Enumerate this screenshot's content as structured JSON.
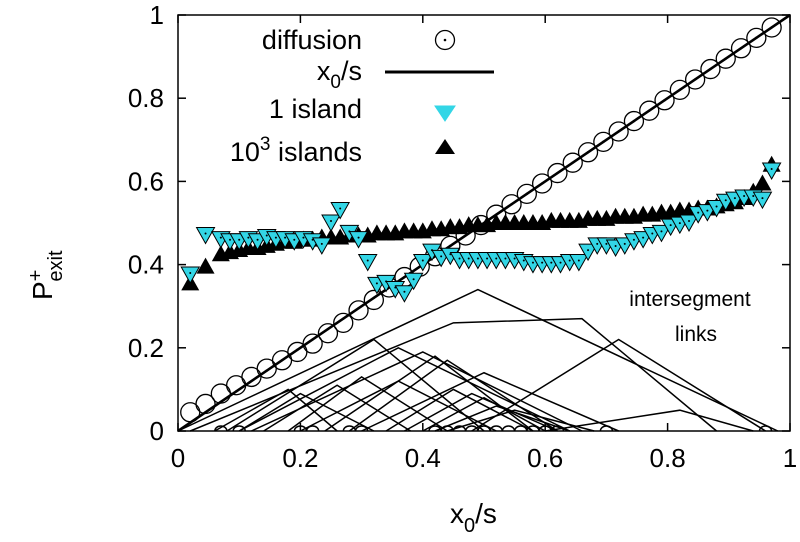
{
  "chart_data": {
    "type": "scatter",
    "xlabel": "x0/s",
    "xlabel_main": "x",
    "xlabel_sub": "0",
    "xlabel_tail": "/s",
    "ylabel": "P+exit",
    "ylabel_main": "P",
    "ylabel_sup": "+",
    "ylabel_sub": "exit",
    "xlim": [
      0,
      1
    ],
    "ylim": [
      0,
      1
    ],
    "x_ticks": [
      "0",
      "0.2",
      "0.4",
      "0.6",
      "0.8",
      "1"
    ],
    "y_ticks": [
      "0",
      "0.2",
      "0.4",
      "0.6",
      "0.8",
      "1"
    ],
    "x_tick_values": [
      0,
      0.2,
      0.4,
      0.6,
      0.8,
      1
    ],
    "y_tick_values": [
      0,
      0.2,
      0.4,
      0.6,
      0.8,
      1
    ],
    "grid": false,
    "legend_position": "top-left",
    "annotation": {
      "line1": "intersegment",
      "line2": "links"
    },
    "series": [
      {
        "name": "diffusion",
        "label": "diffusion",
        "marker": "open-circle",
        "color": "#000000",
        "x": [
          0.02,
          0.045,
          0.07,
          0.095,
          0.12,
          0.145,
          0.17,
          0.195,
          0.22,
          0.245,
          0.27,
          0.295,
          0.32,
          0.345,
          0.37,
          0.395,
          0.42,
          0.445,
          0.47,
          0.495,
          0.52,
          0.545,
          0.57,
          0.595,
          0.62,
          0.645,
          0.67,
          0.695,
          0.72,
          0.745,
          0.77,
          0.795,
          0.82,
          0.845,
          0.87,
          0.895,
          0.92,
          0.945,
          0.97
        ],
        "y": [
          0.045,
          0.065,
          0.09,
          0.11,
          0.13,
          0.15,
          0.17,
          0.19,
          0.21,
          0.235,
          0.26,
          0.29,
          0.315,
          0.345,
          0.37,
          0.395,
          0.42,
          0.445,
          0.47,
          0.495,
          0.52,
          0.545,
          0.57,
          0.595,
          0.62,
          0.645,
          0.67,
          0.695,
          0.72,
          0.745,
          0.77,
          0.795,
          0.82,
          0.845,
          0.87,
          0.895,
          0.92,
          0.945,
          0.97
        ],
        "y_dotted": [
          0.02,
          0.045,
          0.07,
          0.095,
          0.12,
          0.145,
          0.17,
          0.195,
          0.22,
          0.245,
          0.27,
          0.295,
          0.32,
          0.345,
          0.37,
          0.395,
          0.42,
          0.445,
          0.47,
          0.495,
          0.52,
          0.545,
          0.57,
          0.595,
          0.62,
          0.645,
          0.67,
          0.695,
          0.72,
          0.745,
          0.77,
          0.795,
          0.82,
          0.845,
          0.87,
          0.895,
          0.92,
          0.945,
          0.97
        ]
      },
      {
        "name": "x0/s",
        "label_main": "x",
        "label_sub": "0",
        "label_tail": "/s",
        "marker": "line",
        "color": "#000000",
        "x": [
          0,
          1
        ],
        "y": [
          0,
          1
        ]
      },
      {
        "name": "1 island",
        "label": "1 island",
        "marker": "down-triangle",
        "color": "#33d6e6",
        "x": [
          0.02,
          0.045,
          0.07,
          0.085,
          0.1,
          0.115,
          0.13,
          0.145,
          0.16,
          0.175,
          0.19,
          0.205,
          0.22,
          0.235,
          0.25,
          0.265,
          0.28,
          0.295,
          0.31,
          0.325,
          0.34,
          0.355,
          0.37,
          0.385,
          0.4,
          0.415,
          0.43,
          0.445,
          0.46,
          0.475,
          0.49,
          0.505,
          0.52,
          0.535,
          0.55,
          0.565,
          0.58,
          0.595,
          0.61,
          0.625,
          0.64,
          0.655,
          0.67,
          0.685,
          0.7,
          0.715,
          0.73,
          0.745,
          0.76,
          0.775,
          0.79,
          0.805,
          0.82,
          0.835,
          0.85,
          0.865,
          0.88,
          0.895,
          0.91,
          0.925,
          0.94,
          0.955,
          0.97
        ],
        "y": [
          0.375,
          0.47,
          0.46,
          0.455,
          0.455,
          0.46,
          0.455,
          0.465,
          0.46,
          0.46,
          0.455,
          0.46,
          0.455,
          0.445,
          0.5,
          0.53,
          0.475,
          0.46,
          0.405,
          0.35,
          0.355,
          0.34,
          0.33,
          0.36,
          0.405,
          0.43,
          0.415,
          0.42,
          0.41,
          0.41,
          0.41,
          0.41,
          0.41,
          0.41,
          0.41,
          0.405,
          0.4,
          0.4,
          0.4,
          0.4,
          0.405,
          0.405,
          0.43,
          0.445,
          0.445,
          0.44,
          0.445,
          0.455,
          0.46,
          0.47,
          0.475,
          0.49,
          0.495,
          0.5,
          0.52,
          0.525,
          0.535,
          0.55,
          0.555,
          0.56,
          0.56,
          0.555,
          0.625
        ]
      },
      {
        "name": "10^3 islands",
        "label_main": "10",
        "label_sup": "3",
        "label_tail": " islands",
        "marker": "up-triangle",
        "color": "#000000",
        "x": [
          0.02,
          0.045,
          0.07,
          0.085,
          0.1,
          0.115,
          0.13,
          0.145,
          0.16,
          0.175,
          0.19,
          0.205,
          0.22,
          0.235,
          0.25,
          0.265,
          0.28,
          0.295,
          0.31,
          0.325,
          0.34,
          0.355,
          0.37,
          0.385,
          0.4,
          0.415,
          0.43,
          0.445,
          0.46,
          0.475,
          0.49,
          0.505,
          0.52,
          0.535,
          0.55,
          0.565,
          0.58,
          0.595,
          0.61,
          0.625,
          0.64,
          0.655,
          0.67,
          0.685,
          0.7,
          0.715,
          0.73,
          0.745,
          0.76,
          0.775,
          0.79,
          0.805,
          0.82,
          0.835,
          0.85,
          0.865,
          0.88,
          0.895,
          0.91,
          0.925,
          0.94,
          0.955,
          0.97
        ],
        "y": [
          0.355,
          0.395,
          0.425,
          0.43,
          0.435,
          0.44,
          0.44,
          0.445,
          0.45,
          0.455,
          0.455,
          0.46,
          0.46,
          0.465,
          0.465,
          0.465,
          0.47,
          0.47,
          0.47,
          0.475,
          0.475,
          0.475,
          0.48,
          0.48,
          0.48,
          0.485,
          0.485,
          0.49,
          0.49,
          0.495,
          0.495,
          0.495,
          0.5,
          0.5,
          0.5,
          0.5,
          0.5,
          0.5,
          0.505,
          0.505,
          0.505,
          0.505,
          0.51,
          0.51,
          0.51,
          0.515,
          0.515,
          0.515,
          0.52,
          0.52,
          0.525,
          0.525,
          0.53,
          0.53,
          0.535,
          0.535,
          0.54,
          0.545,
          0.55,
          0.56,
          0.575,
          0.595,
          0.64
        ]
      }
    ],
    "links": [
      [
        [
          0.0,
          0.0
        ],
        [
          0.49,
          0.34
        ],
        [
          0.98,
          0.0
        ]
      ],
      [
        [
          0.02,
          0.0
        ],
        [
          0.45,
          0.26
        ],
        [
          0.66,
          0.27
        ],
        [
          0.88,
          0.0
        ]
      ],
      [
        [
          0.08,
          0.0
        ],
        [
          0.32,
          0.22
        ],
        [
          0.5,
          0.0
        ]
      ],
      [
        [
          0.1,
          0.0
        ],
        [
          0.36,
          0.2
        ],
        [
          0.64,
          0.0
        ]
      ],
      [
        [
          0.12,
          0.0
        ],
        [
          0.4,
          0.19
        ],
        [
          0.66,
          0.0
        ]
      ],
      [
        [
          0.1,
          0.0
        ],
        [
          0.2,
          0.09
        ],
        [
          0.32,
          0.0
        ]
      ],
      [
        [
          0.14,
          0.0
        ],
        [
          0.26,
          0.11
        ],
        [
          0.38,
          0.0
        ]
      ],
      [
        [
          0.18,
          0.0
        ],
        [
          0.3,
          0.13
        ],
        [
          0.44,
          0.0
        ]
      ],
      [
        [
          0.2,
          0.0
        ],
        [
          0.36,
          0.12
        ],
        [
          0.52,
          0.0
        ]
      ],
      [
        [
          0.24,
          0.0
        ],
        [
          0.42,
          0.18
        ],
        [
          0.58,
          0.0
        ]
      ],
      [
        [
          0.28,
          0.0
        ],
        [
          0.44,
          0.17
        ],
        [
          0.62,
          0.0
        ]
      ],
      [
        [
          0.34,
          0.0
        ],
        [
          0.45,
          0.1
        ],
        [
          0.58,
          0.0
        ]
      ],
      [
        [
          0.37,
          0.0
        ],
        [
          0.48,
          0.09
        ],
        [
          0.62,
          0.0
        ]
      ],
      [
        [
          0.4,
          0.0
        ],
        [
          0.5,
          0.08
        ],
        [
          0.6,
          0.0
        ]
      ],
      [
        [
          0.42,
          0.0
        ],
        [
          0.52,
          0.06
        ],
        [
          0.64,
          0.0
        ]
      ],
      [
        [
          0.44,
          0.0
        ],
        [
          0.55,
          0.05
        ],
        [
          0.68,
          0.0
        ]
      ],
      [
        [
          0.3,
          0.0
        ],
        [
          0.5,
          0.14
        ],
        [
          0.72,
          0.0
        ]
      ],
      [
        [
          0.48,
          0.0
        ],
        [
          0.72,
          0.22
        ],
        [
          0.96,
          0.0
        ]
      ],
      [
        [
          0.6,
          0.0
        ],
        [
          0.82,
          0.05
        ],
        [
          0.94,
          0.0
        ]
      ],
      [
        [
          0.06,
          0.0
        ],
        [
          0.18,
          0.1
        ],
        [
          0.26,
          0.0
        ]
      ]
    ],
    "bumps_x": [
      0.07,
      0.1,
      0.2,
      0.22,
      0.28,
      0.3,
      0.42,
      0.44,
      0.46,
      0.48,
      0.5,
      0.52,
      0.54,
      0.56,
      0.58,
      0.6,
      0.62,
      0.7,
      0.96
    ]
  }
}
